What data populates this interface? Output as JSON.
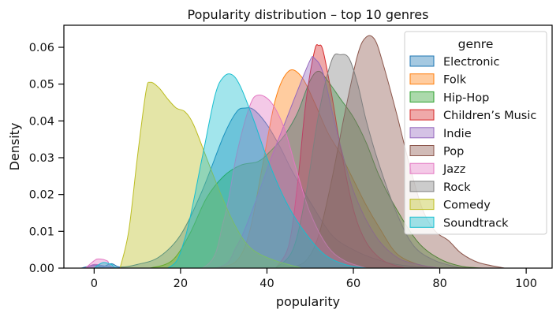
{
  "chart_data": {
    "type": "area",
    "title": "Popularity distribution – top 10 genres",
    "xlabel": "popularity",
    "ylabel": "Density",
    "xlim": [
      -7,
      106
    ],
    "ylim": [
      0,
      0.066
    ],
    "xticks": [
      0,
      20,
      40,
      60,
      80,
      100
    ],
    "yticks": [
      0.0,
      0.01,
      0.02,
      0.03,
      0.04,
      0.05,
      0.06
    ],
    "ytick_labels": [
      "0.00",
      "0.01",
      "0.02",
      "0.03",
      "0.04",
      "0.05",
      "0.06"
    ],
    "grid": false,
    "legend": {
      "title": "genre",
      "placement": "top-right"
    },
    "series": [
      {
        "name": "Electronic",
        "color": "#1f77b4",
        "points": [
          [
            -3,
            0
          ],
          [
            0,
            0.0008
          ],
          [
            2,
            0.0004
          ],
          [
            4,
            0.0012
          ],
          [
            6,
            0.0003
          ],
          [
            10,
            0.001
          ],
          [
            15,
            0.003
          ],
          [
            20,
            0.009
          ],
          [
            25,
            0.021
          ],
          [
            30,
            0.036
          ],
          [
            33,
            0.0425
          ],
          [
            35,
            0.0435
          ],
          [
            37,
            0.043
          ],
          [
            40,
            0.039
          ],
          [
            43,
            0.033
          ],
          [
            46,
            0.026
          ],
          [
            50,
            0.018
          ],
          [
            55,
            0.009
          ],
          [
            60,
            0.005
          ],
          [
            65,
            0.0025
          ],
          [
            70,
            0.001
          ],
          [
            78,
            0
          ]
        ]
      },
      {
        "name": "Folk",
        "color": "#ff7f0e",
        "points": [
          [
            28,
            0
          ],
          [
            33,
            0.002
          ],
          [
            36,
            0.01
          ],
          [
            39,
            0.028
          ],
          [
            42,
            0.046
          ],
          [
            45,
            0.0535
          ],
          [
            48,
            0.052
          ],
          [
            51,
            0.045
          ],
          [
            54,
            0.037
          ],
          [
            57,
            0.031
          ],
          [
            60,
            0.024
          ],
          [
            63,
            0.017
          ],
          [
            66,
            0.011
          ],
          [
            70,
            0.004
          ],
          [
            75,
            0.001
          ],
          [
            80,
            0
          ]
        ]
      },
      {
        "name": "Hip-Hop",
        "color": "#2ca02c",
        "points": [
          [
            13,
            0
          ],
          [
            18,
            0.002
          ],
          [
            22,
            0.009
          ],
          [
            26,
            0.019
          ],
          [
            30,
            0.025
          ],
          [
            34,
            0.028
          ],
          [
            38,
            0.029
          ],
          [
            41,
            0.032
          ],
          [
            44,
            0.036
          ],
          [
            47,
            0.042
          ],
          [
            50,
            0.051
          ],
          [
            52,
            0.0535
          ],
          [
            54,
            0.051
          ],
          [
            57,
            0.046
          ],
          [
            60,
            0.041
          ],
          [
            63,
            0.034
          ],
          [
            66,
            0.025
          ],
          [
            70,
            0.016
          ],
          [
            75,
            0.007
          ],
          [
            80,
            0.0025
          ],
          [
            85,
            0.0005
          ],
          [
            90,
            0
          ]
        ]
      },
      {
        "name": "Children’s Music",
        "color": "#d62728",
        "points": [
          [
            42,
            0
          ],
          [
            45,
            0.006
          ],
          [
            47,
            0.022
          ],
          [
            49,
            0.045
          ],
          [
            51,
            0.059
          ],
          [
            52,
            0.0605
          ],
          [
            53,
            0.059
          ],
          [
            55,
            0.047
          ],
          [
            57,
            0.033
          ],
          [
            60,
            0.016
          ],
          [
            63,
            0.007
          ],
          [
            67,
            0.002
          ],
          [
            72,
            0
          ]
        ]
      },
      {
        "name": "Indie",
        "color": "#9467bd",
        "points": [
          [
            -2,
            0
          ],
          [
            0,
            0.001
          ],
          [
            3,
            0.0005
          ],
          [
            8,
            0
          ],
          [
            28,
            0
          ],
          [
            33,
            0.006
          ],
          [
            37,
            0.017
          ],
          [
            41,
            0.03
          ],
          [
            44,
            0.039
          ],
          [
            47,
            0.048
          ],
          [
            50,
            0.0565
          ],
          [
            51,
            0.057
          ],
          [
            53,
            0.053
          ],
          [
            56,
            0.038
          ],
          [
            60,
            0.021
          ],
          [
            65,
            0.009
          ],
          [
            70,
            0.003
          ],
          [
            75,
            0.001
          ],
          [
            80,
            0
          ]
        ]
      },
      {
        "name": "Pop",
        "color": "#8c564b",
        "points": [
          [
            45,
            0
          ],
          [
            49,
            0.002
          ],
          [
            52,
            0.009
          ],
          [
            55,
            0.024
          ],
          [
            58,
            0.042
          ],
          [
            61,
            0.058
          ],
          [
            63,
            0.0628
          ],
          [
            65,
            0.062
          ],
          [
            67,
            0.055
          ],
          [
            70,
            0.042
          ],
          [
            73,
            0.028
          ],
          [
            76,
            0.016
          ],
          [
            79,
            0.01
          ],
          [
            82,
            0.0075
          ],
          [
            85,
            0.004
          ],
          [
            89,
            0.0015
          ],
          [
            95,
            0
          ]
        ]
      },
      {
        "name": "Jazz",
        "color": "#e377c2",
        "points": [
          [
            -2,
            0
          ],
          [
            0,
            0.002
          ],
          [
            1,
            0.0025
          ],
          [
            3,
            0.002
          ],
          [
            6,
            0
          ],
          [
            25,
            0
          ],
          [
            30,
            0.013
          ],
          [
            33,
            0.031
          ],
          [
            36,
            0.044
          ],
          [
            38,
            0.047
          ],
          [
            41,
            0.045
          ],
          [
            44,
            0.038
          ],
          [
            47,
            0.026
          ],
          [
            50,
            0.015
          ],
          [
            54,
            0.006
          ],
          [
            58,
            0.002
          ],
          [
            63,
            0
          ]
        ]
      },
      {
        "name": "Rock",
        "color": "#7f7f7f",
        "points": [
          [
            42,
            0
          ],
          [
            46,
            0.005
          ],
          [
            49,
            0.02
          ],
          [
            52,
            0.042
          ],
          [
            55,
            0.0565
          ],
          [
            57,
            0.058
          ],
          [
            59,
            0.057
          ],
          [
            61,
            0.05
          ],
          [
            63,
            0.04
          ],
          [
            66,
            0.028
          ],
          [
            70,
            0.015
          ],
          [
            74,
            0.006
          ],
          [
            79,
            0.002
          ],
          [
            85,
            0
          ]
        ]
      },
      {
        "name": "Comedy",
        "color": "#bcbd22",
        "points": [
          [
            6,
            0
          ],
          [
            8,
            0.01
          ],
          [
            10,
            0.03
          ],
          [
            12,
            0.048
          ],
          [
            13,
            0.0505
          ],
          [
            15,
            0.049
          ],
          [
            17,
            0.046
          ],
          [
            19,
            0.0435
          ],
          [
            21,
            0.0425
          ],
          [
            23,
            0.039
          ],
          [
            26,
            0.03
          ],
          [
            29,
            0.021
          ],
          [
            32,
            0.013
          ],
          [
            35,
            0.007
          ],
          [
            38,
            0.004
          ],
          [
            42,
            0.002
          ],
          [
            48,
            0
          ]
        ]
      },
      {
        "name": "Soundtrack",
        "color": "#17becf",
        "points": [
          [
            0,
            0
          ],
          [
            2,
            0.0015
          ],
          [
            4,
            0.001
          ],
          [
            6,
            0
          ],
          [
            17,
            0
          ],
          [
            21,
            0.008
          ],
          [
            25,
            0.03
          ],
          [
            28,
            0.047
          ],
          [
            30,
            0.052
          ],
          [
            32,
            0.0525
          ],
          [
            34,
            0.049
          ],
          [
            37,
            0.04
          ],
          [
            40,
            0.03
          ],
          [
            44,
            0.019
          ],
          [
            48,
            0.011
          ],
          [
            53,
            0.004
          ],
          [
            58,
            0.001
          ],
          [
            63,
            0
          ]
        ]
      }
    ]
  }
}
